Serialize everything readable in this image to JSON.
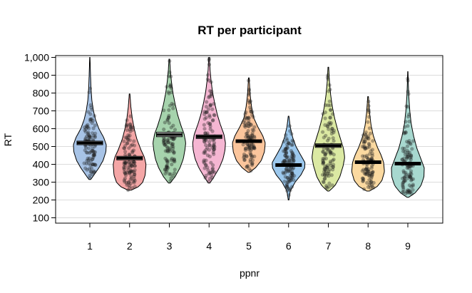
{
  "chart_data": {
    "type": "pirate",
    "title": "RT per participant",
    "xlabel": "ppnr",
    "ylabel": "RT",
    "ylim": [
      70,
      1010
    ],
    "yticks": [
      100,
      200,
      300,
      400,
      500,
      600,
      700,
      800,
      900,
      1000
    ],
    "ytick_labels": [
      "100",
      "200",
      "300",
      "400",
      "500",
      "600",
      "700",
      "800",
      "900",
      "1,000"
    ],
    "grid": true,
    "categories": [
      "1",
      "2",
      "3",
      "4",
      "5",
      "6",
      "7",
      "8",
      "9"
    ],
    "series": [
      {
        "category": "1",
        "color": "#a7c3e6",
        "mean": 520,
        "min": 315,
        "max": 1000,
        "hdi": [
          510,
          530
        ],
        "density": [
          [
            315,
            0.05
          ],
          [
            340,
            0.25
          ],
          [
            380,
            0.55
          ],
          [
            420,
            0.8
          ],
          [
            470,
            0.98
          ],
          [
            510,
            1.0
          ],
          [
            550,
            0.85
          ],
          [
            600,
            0.55
          ],
          [
            650,
            0.35
          ],
          [
            700,
            0.22
          ],
          [
            760,
            0.12
          ],
          [
            830,
            0.07
          ],
          [
            900,
            0.04
          ],
          [
            1000,
            0.01
          ]
        ]
      },
      {
        "category": "2",
        "color": "#f4a6a6",
        "mean": 435,
        "min": 255,
        "max": 795,
        "hdi": [
          425,
          445
        ],
        "density": [
          [
            255,
            0.1
          ],
          [
            275,
            0.55
          ],
          [
            300,
            0.8
          ],
          [
            340,
            0.95
          ],
          [
            400,
            1.0
          ],
          [
            440,
            0.9
          ],
          [
            480,
            0.7
          ],
          [
            540,
            0.45
          ],
          [
            600,
            0.28
          ],
          [
            660,
            0.16
          ],
          [
            720,
            0.08
          ],
          [
            795,
            0.02
          ]
        ]
      },
      {
        "category": "3",
        "color": "#a6d3ad",
        "mean": 567,
        "min": 295,
        "max": 990,
        "hdi": [
          555,
          580
        ],
        "density": [
          [
            295,
            0.05
          ],
          [
            330,
            0.35
          ],
          [
            380,
            0.65
          ],
          [
            430,
            0.85
          ],
          [
            480,
            0.95
          ],
          [
            520,
            1.0
          ],
          [
            570,
            0.9
          ],
          [
            620,
            0.7
          ],
          [
            680,
            0.5
          ],
          [
            740,
            0.35
          ],
          [
            800,
            0.22
          ],
          [
            870,
            0.12
          ],
          [
            930,
            0.06
          ],
          [
            990,
            0.02
          ]
        ]
      },
      {
        "category": "4",
        "color": "#f5b6d2",
        "mean": 555,
        "min": 295,
        "max": 1000,
        "hdi": [
          545,
          565
        ],
        "density": [
          [
            295,
            0.05
          ],
          [
            330,
            0.3
          ],
          [
            380,
            0.62
          ],
          [
            430,
            0.85
          ],
          [
            480,
            0.97
          ],
          [
            520,
            1.0
          ],
          [
            570,
            0.9
          ],
          [
            620,
            0.7
          ],
          [
            680,
            0.5
          ],
          [
            740,
            0.35
          ],
          [
            800,
            0.22
          ],
          [
            870,
            0.12
          ],
          [
            930,
            0.06
          ],
          [
            1000,
            0.02
          ]
        ]
      },
      {
        "category": "5",
        "color": "#fbc59c",
        "mean": 530,
        "min": 355,
        "max": 885,
        "hdi": [
          522,
          538
        ],
        "density": [
          [
            355,
            0.05
          ],
          [
            380,
            0.4
          ],
          [
            420,
            0.75
          ],
          [
            470,
            0.95
          ],
          [
            520,
            1.0
          ],
          [
            560,
            0.85
          ],
          [
            610,
            0.55
          ],
          [
            660,
            0.3
          ],
          [
            720,
            0.17
          ],
          [
            790,
            0.08
          ],
          [
            885,
            0.02
          ]
        ]
      },
      {
        "category": "6",
        "color": "#9cc8ed",
        "mean": 397,
        "min": 200,
        "max": 670,
        "hdi": [
          390,
          404
        ],
        "density": [
          [
            200,
            0.02
          ],
          [
            250,
            0.1
          ],
          [
            300,
            0.4
          ],
          [
            340,
            0.75
          ],
          [
            380,
            0.98
          ],
          [
            410,
            1.0
          ],
          [
            450,
            0.75
          ],
          [
            500,
            0.45
          ],
          [
            550,
            0.25
          ],
          [
            610,
            0.1
          ],
          [
            670,
            0.02
          ]
        ]
      },
      {
        "category": "7",
        "color": "#dbe9a3",
        "mean": 505,
        "min": 250,
        "max": 945,
        "hdi": [
          495,
          515
        ],
        "density": [
          [
            250,
            0.05
          ],
          [
            280,
            0.4
          ],
          [
            330,
            0.7
          ],
          [
            390,
            0.9
          ],
          [
            440,
            1.0
          ],
          [
            490,
            0.92
          ],
          [
            540,
            0.75
          ],
          [
            600,
            0.55
          ],
          [
            660,
            0.38
          ],
          [
            720,
            0.25
          ],
          [
            790,
            0.14
          ],
          [
            860,
            0.07
          ],
          [
            945,
            0.02
          ]
        ]
      },
      {
        "category": "8",
        "color": "#fbd9a0",
        "mean": 412,
        "min": 250,
        "max": 780,
        "hdi": [
          405,
          420
        ],
        "density": [
          [
            250,
            0.08
          ],
          [
            275,
            0.55
          ],
          [
            310,
            0.85
          ],
          [
            360,
            1.0
          ],
          [
            410,
            0.95
          ],
          [
            450,
            0.8
          ],
          [
            500,
            0.55
          ],
          [
            560,
            0.32
          ],
          [
            620,
            0.18
          ],
          [
            690,
            0.09
          ],
          [
            780,
            0.02
          ]
        ]
      },
      {
        "category": "9",
        "color": "#a7d8cf",
        "mean": 405,
        "min": 215,
        "max": 920,
        "hdi": [
          398,
          412
        ],
        "density": [
          [
            215,
            0.05
          ],
          [
            240,
            0.45
          ],
          [
            280,
            0.8
          ],
          [
            330,
            0.98
          ],
          [
            380,
            1.0
          ],
          [
            430,
            0.8
          ],
          [
            490,
            0.55
          ],
          [
            560,
            0.35
          ],
          [
            630,
            0.2
          ],
          [
            700,
            0.12
          ],
          [
            780,
            0.06
          ],
          [
            850,
            0.03
          ],
          [
            920,
            0.01
          ]
        ]
      }
    ]
  }
}
